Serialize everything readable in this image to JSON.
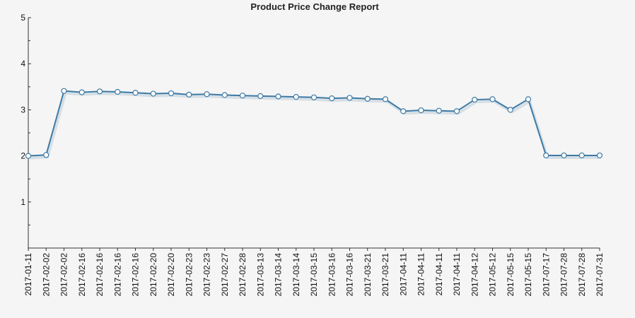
{
  "chart_data": {
    "type": "line",
    "title": "Product Price Change Report",
    "xlabel": "",
    "ylabel": "",
    "ylim": [
      0,
      5
    ],
    "y_ticks": [
      "1",
      "2",
      "3",
      "4",
      "5"
    ],
    "grid": false,
    "line_color": "#3e7aa6",
    "categories": [
      "2017-01-11",
      "2017-02-02",
      "2017-02-02",
      "2017-02-16",
      "2017-02-16",
      "2017-02-16",
      "2017-02-16",
      "2017-02-20",
      "2017-02-20",
      "2017-02-23",
      "2017-02-23",
      "2017-02-27",
      "2017-02-28",
      "2017-03-13",
      "2017-03-14",
      "2017-03-14",
      "2017-03-15",
      "2017-03-16",
      "2017-03-16",
      "2017-03-21",
      "2017-03-21",
      "2017-04-11",
      "2017-04-11",
      "2017-04-11",
      "2017-04-11",
      "2017-04-12",
      "2017-05-12",
      "2017-05-15",
      "2017-05-15",
      "2017-07-17",
      "2017-07-28",
      "2017-07-28",
      "2017-07-31"
    ],
    "series": [
      {
        "name": "",
        "values": [
          2.0,
          2.02,
          3.41,
          3.38,
          3.4,
          3.39,
          3.37,
          3.35,
          3.36,
          3.33,
          3.34,
          3.32,
          3.31,
          3.3,
          3.29,
          3.28,
          3.27,
          3.25,
          3.26,
          3.24,
          3.23,
          2.97,
          2.99,
          2.98,
          2.97,
          3.22,
          3.23,
          3.0,
          3.23,
          2.01,
          2.01,
          2.01,
          2.01
        ]
      }
    ]
  }
}
